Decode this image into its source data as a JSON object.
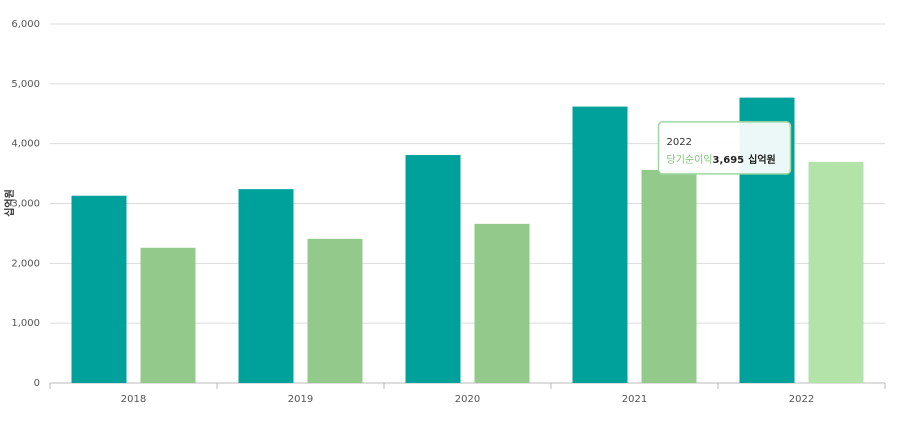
{
  "chart_data": {
    "type": "bar",
    "y_label": "십억원",
    "categories": [
      "2018",
      "2019",
      "2020",
      "2021",
      "2022"
    ],
    "series": [
      {
        "color": "#00a19a",
        "values": [
          3130,
          3240,
          3810,
          4620,
          4770
        ]
      },
      {
        "name": "당기순이익",
        "color": "#94c98c",
        "colors": [
          "#94c98c",
          "#94c98c",
          "#94c98c",
          "#94c98c",
          "#b3e3a9"
        ],
        "values": [
          2260,
          2410,
          2660,
          3560,
          3695
        ],
        "value_labels": [
          null,
          null,
          null,
          null,
          "3,695"
        ]
      }
    ],
    "ylim": [
      0,
      6000
    ],
    "yticks": [
      0,
      {
        "value": 1000,
        "label": "1,000"
      },
      {
        "value": 2000,
        "label": "2,000"
      },
      {
        "value": 3000,
        "label": "3,000"
      },
      {
        "value": 4000,
        "label": "4,000"
      },
      {
        "value": 5000,
        "label": "5,000"
      },
      {
        "value": 6000,
        "label": "6,000"
      }
    ],
    "grid": true
  }
}
